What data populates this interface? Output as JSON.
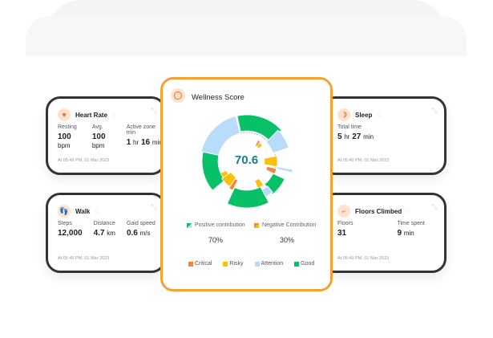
{
  "cards": {
    "heart": {
      "title": "Heart Rate",
      "stats": [
        {
          "label": "Resting",
          "value": "100",
          "unit": "bpm"
        },
        {
          "label": "Avg.",
          "value": "100",
          "unit": "bpm"
        },
        {
          "label": "Active zone min",
          "value": "1",
          "unit": "hr",
          "value2": "16",
          "unit2": "min"
        }
      ],
      "timestamp": "At 05:49 PM, 01 Mar 2023"
    },
    "walk": {
      "title": "Walk",
      "stats": [
        {
          "label": "Steps",
          "value": "12,000"
        },
        {
          "label": "Distance",
          "value": "4.7",
          "unit": "km"
        },
        {
          "label": "Gaid speed",
          "value": "0.6",
          "unit": "m/s"
        }
      ],
      "timestamp": "At 05:49 PM, 01 Mar 2023"
    },
    "sleep": {
      "title": "Sleep",
      "stats": [
        {
          "label": "Total time",
          "value": "5",
          "unit": "hr",
          "value2": "27",
          "unit2": "min"
        }
      ],
      "timestamp": "At 05:49 PM, 01 Mar 2023"
    },
    "floors": {
      "title": "Floors Climbed",
      "stats": [
        {
          "label": "Floors",
          "value": "31"
        },
        {
          "label": "Time spent",
          "value": "9",
          "unit": "min"
        }
      ],
      "timestamp": "At 05:49 PM, 01 Mar 2023"
    }
  },
  "wellness": {
    "title": "Wellness Score",
    "score": "70.6",
    "positive_label": "Positive contribution",
    "positive_value": "70%",
    "negative_label": "Negative Contribution",
    "negative_value": "30%",
    "legend": [
      "Critical",
      "Risky",
      "Attention",
      "Good"
    ]
  },
  "colors": {
    "Critical": "#f5843c",
    "Risky": "#fbbf0e",
    "Attention": "#b9dcfb",
    "Good": "#06c167",
    "accent": "#f7a133",
    "score": "#1a7e86"
  },
  "chart_data": {
    "type": "radial-bar",
    "segments": [
      {
        "cat": "Good",
        "start": -12,
        "end": 48,
        "r0": 38,
        "r1": 58
      },
      {
        "cat": "Attention",
        "start": 282,
        "end": 346,
        "r0": 36,
        "r1": 58
      },
      {
        "cat": "Good",
        "start": 230,
        "end": 282,
        "r0": 36,
        "r1": 56
      },
      {
        "cat": "Good",
        "start": 152,
        "end": 205,
        "r0": 36,
        "r1": 58
      },
      {
        "cat": "Attention",
        "start": 45,
        "end": 72,
        "r0": 34,
        "r1": 55
      },
      {
        "cat": "Critical",
        "start": 28,
        "end": 34,
        "r0": 22,
        "r1": 30
      },
      {
        "cat": "Risky",
        "start": 34,
        "end": 44,
        "r0": 22,
        "r1": 28
      },
      {
        "cat": "Risky",
        "start": 80,
        "end": 100,
        "r0": 22,
        "r1": 38
      },
      {
        "cat": "Attention",
        "start": 100,
        "end": 104,
        "r0": 38,
        "r1": 58
      },
      {
        "cat": "Critical",
        "start": 104,
        "end": 114,
        "r0": 26,
        "r1": 38
      },
      {
        "cat": "Good",
        "start": 115,
        "end": 142,
        "r0": 36,
        "r1": 52
      },
      {
        "cat": "Attention",
        "start": 140,
        "end": 152,
        "r0": 40,
        "r1": 50
      },
      {
        "cat": "Risky",
        "start": 145,
        "end": 158,
        "r0": 26,
        "r1": 36
      },
      {
        "cat": "Critical",
        "start": 206,
        "end": 214,
        "r0": 26,
        "r1": 40
      },
      {
        "cat": "Risky",
        "start": 214,
        "end": 236,
        "r0": 24,
        "r1": 38
      },
      {
        "cat": "Risky",
        "start": 236,
        "end": 246,
        "r0": 28,
        "r1": 36
      }
    ]
  }
}
